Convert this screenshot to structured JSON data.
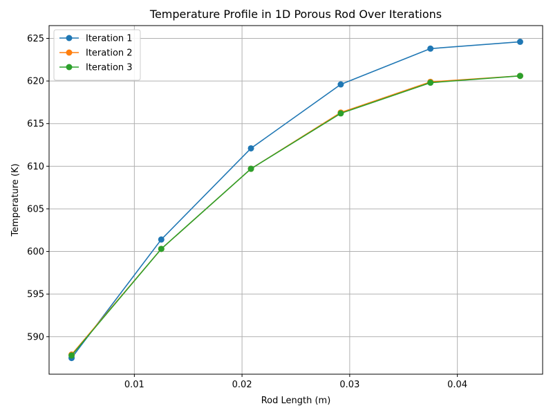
{
  "chart_data": {
    "type": "line",
    "title": "Temperature Profile in 1D Porous Rod Over Iterations",
    "xlabel": "Rod Length (m)",
    "ylabel": "Temperature (K)",
    "x": [
      0.00417,
      0.0125,
      0.02083,
      0.02917,
      0.0375,
      0.04583
    ],
    "xlim": [
      0.00208,
      0.04792
    ],
    "ylim": [
      585.6,
      626.5
    ],
    "xticks": [
      0.01,
      0.02,
      0.03,
      0.04
    ],
    "xtick_labels": [
      "0.01",
      "0.02",
      "0.03",
      "0.04"
    ],
    "yticks": [
      590,
      595,
      600,
      605,
      610,
      615,
      620,
      625
    ],
    "ytick_labels": [
      "590",
      "595",
      "600",
      "605",
      "610",
      "615",
      "620",
      "625"
    ],
    "grid": true,
    "legend_position": "top-left",
    "series": [
      {
        "name": "Iteration 1",
        "color": "#1f77b4",
        "values": [
          587.5,
          601.4,
          612.1,
          619.6,
          623.8,
          624.6
        ]
      },
      {
        "name": "Iteration 2",
        "color": "#ff7f0e",
        "values": [
          587.9,
          600.3,
          609.7,
          616.3,
          619.9,
          620.6
        ]
      },
      {
        "name": "Iteration 3",
        "color": "#2ca02c",
        "values": [
          587.8,
          600.3,
          609.7,
          616.2,
          619.8,
          620.6
        ]
      }
    ]
  }
}
